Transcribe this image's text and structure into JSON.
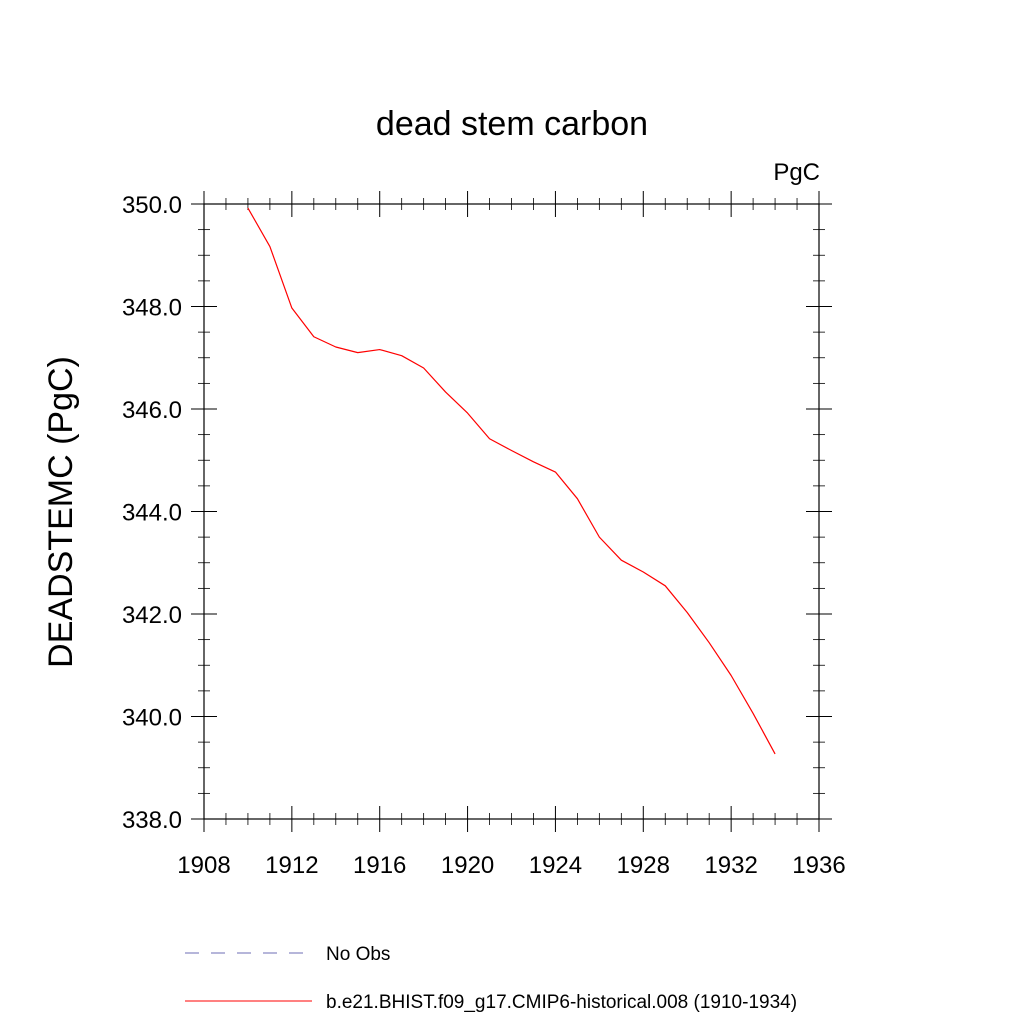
{
  "chart_data": {
    "type": "line",
    "title": "dead stem carbon",
    "units_label": "PgC",
    "ylabel": "DEADSTEMC  (PgC)",
    "xlabel": "",
    "xlim": [
      1908,
      1936
    ],
    "ylim": [
      338.0,
      350.0
    ],
    "x_ticks": [
      "1908",
      "1912",
      "1916",
      "1920",
      "1924",
      "1928",
      "1932",
      "1936"
    ],
    "y_ticks": [
      "338.0",
      "340.0",
      "342.0",
      "344.0",
      "346.0",
      "348.0",
      "350.0"
    ],
    "grid": false,
    "legend_position": "bottom",
    "series": [
      {
        "name": "b.e21.BHIST.f09_g17.CMIP6-historical.008 (1910-1934)",
        "color": "#ff0000",
        "style": "solid",
        "x": [
          1910,
          1911,
          1912,
          1913,
          1914,
          1915,
          1916,
          1917,
          1918,
          1919,
          1920,
          1921,
          1922,
          1923,
          1924,
          1925,
          1926,
          1927,
          1928,
          1929,
          1930,
          1931,
          1932,
          1933,
          1934
        ],
        "values": [
          349.92,
          349.17,
          347.97,
          347.41,
          347.21,
          347.1,
          347.16,
          347.04,
          346.8,
          346.33,
          345.92,
          345.42,
          345.19,
          344.97,
          344.77,
          344.25,
          343.5,
          343.05,
          342.82,
          342.55,
          342.03,
          341.44,
          340.8,
          340.06,
          339.27
        ]
      }
    ],
    "legend": [
      {
        "label": "No Obs",
        "color": "#6e6eb4",
        "style": "dashed"
      },
      {
        "label": "b.e21.BHIST.f09_g17.CMIP6-historical.008 (1910-1934)",
        "color": "#ff0000",
        "style": "solid"
      }
    ]
  }
}
